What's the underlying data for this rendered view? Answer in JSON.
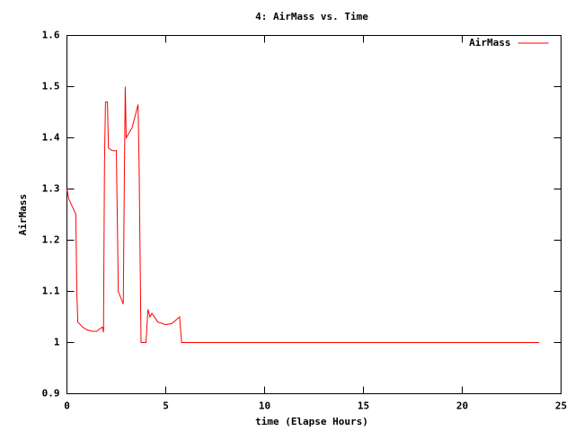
{
  "chart_data": {
    "type": "line",
    "title": "4: AirMass vs. Time",
    "x_label": "time (Elapse Hours)",
    "y_label": "AirMass",
    "x": [
      0,
      0.1,
      0.4,
      0.45,
      0.5,
      0.55,
      0.8,
      1.0,
      1.3,
      1.5,
      1.7,
      1.8,
      1.85,
      1.9,
      1.95,
      2.05,
      2.1,
      2.3,
      2.5,
      2.6,
      2.85,
      2.9,
      2.95,
      3.0,
      3.3,
      3.6,
      3.65,
      3.75,
      4.0,
      4.1,
      4.2,
      4.3,
      4.6,
      5.0,
      5.3,
      5.7,
      5.8,
      23.9
    ],
    "series": [
      {
        "name": "AirMass",
        "color": "#ff0000",
        "values": [
          1.3,
          1.28,
          1.255,
          1.25,
          1.1,
          1.04,
          1.03,
          1.025,
          1.022,
          1.022,
          1.028,
          1.03,
          1.02,
          1.35,
          1.47,
          1.47,
          1.38,
          1.375,
          1.375,
          1.1,
          1.075,
          1.3,
          1.5,
          1.4,
          1.42,
          1.465,
          1.35,
          1.0,
          1.0,
          1.065,
          1.05,
          1.057,
          1.04,
          1.035,
          1.037,
          1.05,
          1.0,
          1.0
        ]
      }
    ],
    "xlim": [
      0,
      25
    ],
    "xticks": [
      0,
      5,
      10,
      15,
      20,
      25
    ],
    "ylim": [
      0.9,
      1.6
    ],
    "yticks": [
      0.9,
      1,
      1.1,
      1.2,
      1.3,
      1.4,
      1.5,
      1.6
    ],
    "grid": false,
    "legend": "top-right"
  }
}
